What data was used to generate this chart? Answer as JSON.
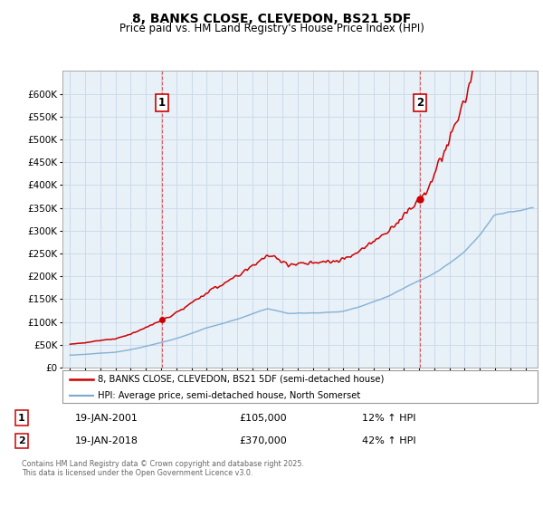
{
  "title": "8, BANKS CLOSE, CLEVEDON, BS21 5DF",
  "subtitle": "Price paid vs. HM Land Registry's House Price Index (HPI)",
  "legend_line1": "8, BANKS CLOSE, CLEVEDON, BS21 5DF (semi-detached house)",
  "legend_line2": "HPI: Average price, semi-detached house, North Somerset",
  "annotation1_label": "1",
  "annotation1_date": "19-JAN-2001",
  "annotation1_price": "£105,000",
  "annotation1_hpi": "12% ↑ HPI",
  "annotation2_label": "2",
  "annotation2_date": "19-JAN-2018",
  "annotation2_price": "£370,000",
  "annotation2_hpi": "42% ↑ HPI",
  "footnote": "Contains HM Land Registry data © Crown copyright and database right 2025.\nThis data is licensed under the Open Government Licence v3.0.",
  "price_color": "#cc0000",
  "hpi_color": "#7aaad0",
  "vline_color": "#cc0000",
  "background_color": "#e8f0f8",
  "grid_color": "#c8d8e8",
  "ylim_max": 650000,
  "ylim_min": 0,
  "sale1_year": 2001.05,
  "sale1_price": 105000,
  "sale2_year": 2018.05,
  "sale2_price": 370000,
  "xmin": 1994.5,
  "xmax": 2025.8
}
